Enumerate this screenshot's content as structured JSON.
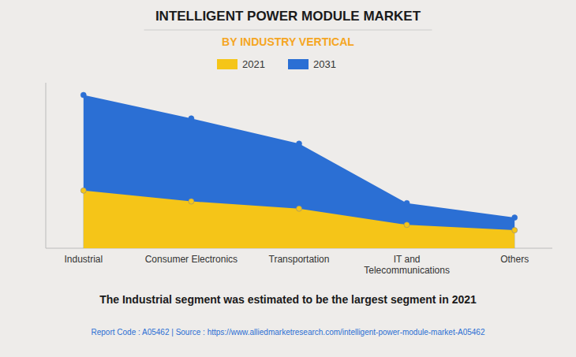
{
  "chart_data": {
    "type": "area",
    "title": "INTELLIGENT POWER MODULE MARKET",
    "subtitle": "BY INDUSTRY VERTICAL",
    "categories": [
      "Industrial",
      "Consumer Electronics",
      "Transportation",
      "IT and\nTelecommunications",
      "Others"
    ],
    "series": [
      {
        "name": "2021",
        "color": "#F5C518",
        "values": [
          3.2,
          2.6,
          2.2,
          1.3,
          1.0
        ]
      },
      {
        "name": "2031",
        "color": "#2B6FD4",
        "values": [
          8.5,
          7.2,
          5.8,
          2.5,
          1.7
        ]
      }
    ],
    "ylim": [
      0,
      9.18
    ],
    "tick_labels": "x",
    "grid": false,
    "marker": "circle",
    "annotations": [
      "The Industrial segment was estimated to be the largest segment in 2021",
      "Report Code : A05462  |  Source : https://www.alliedmarketresearch.com/intelligent-power-module-market-A05462"
    ]
  }
}
